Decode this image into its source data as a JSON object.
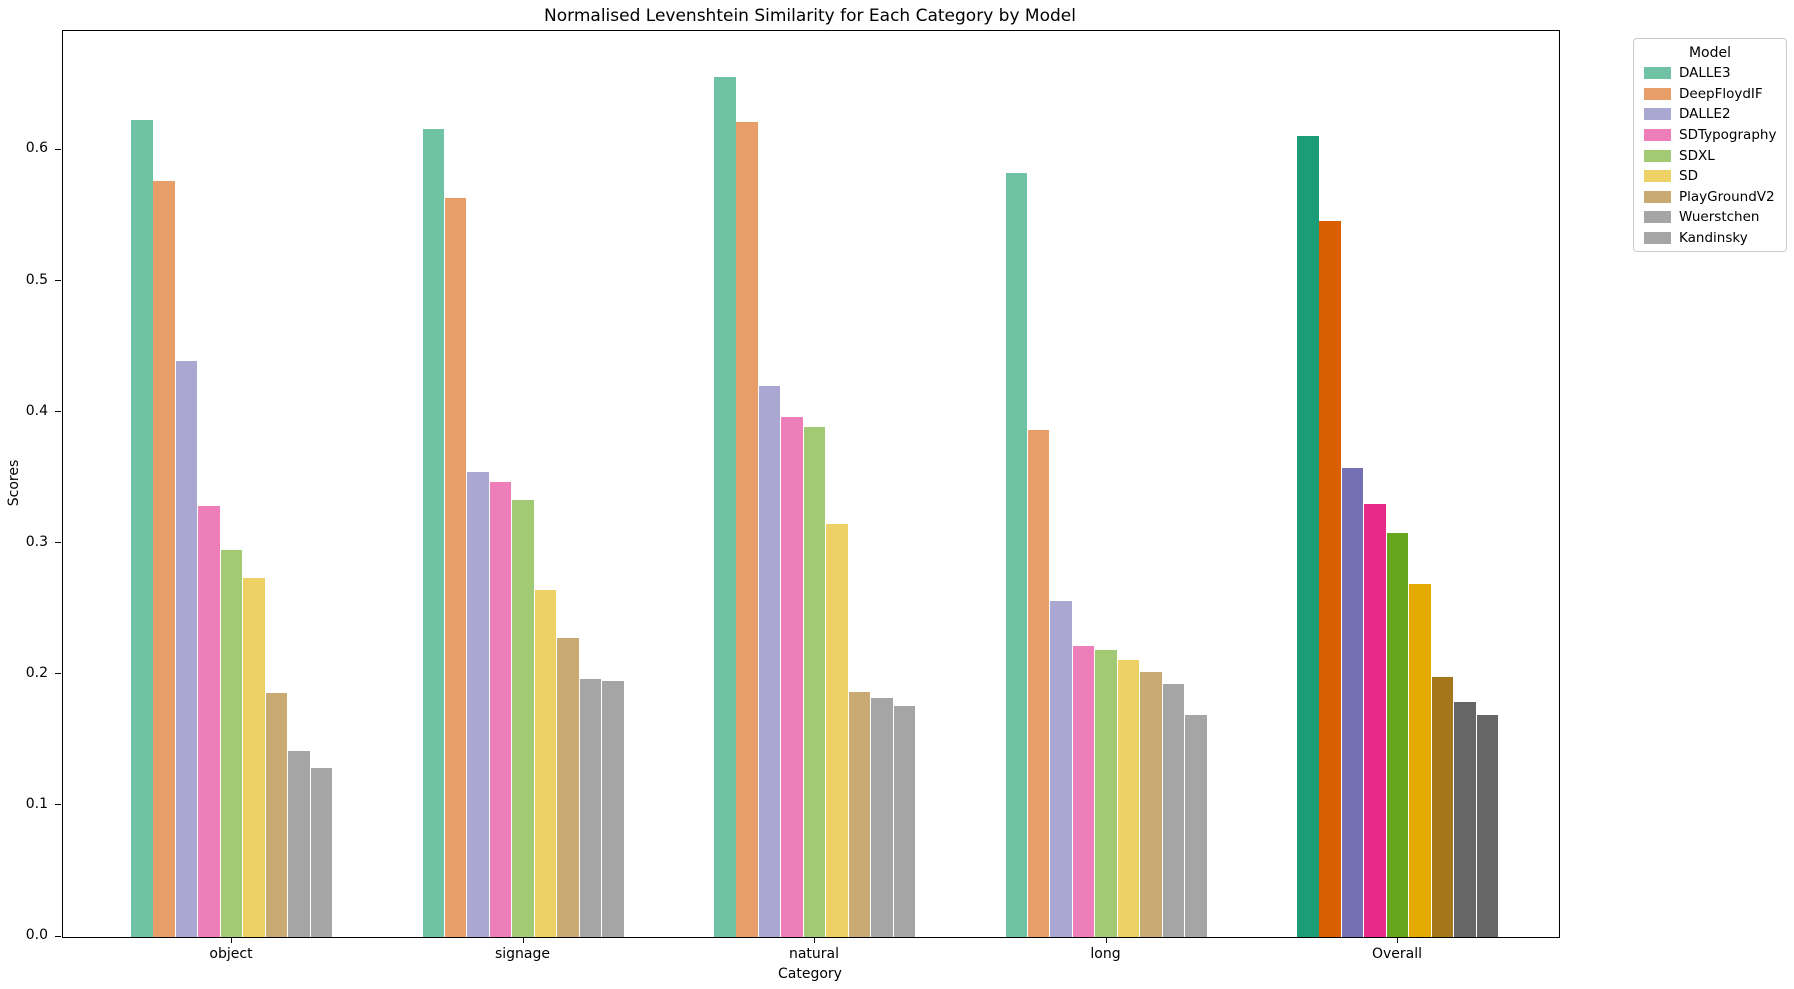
{
  "chart_data": {
    "type": "bar",
    "title": "Normalised Levenshtein Similarity for Each Category by Model",
    "xlabel": "Category",
    "ylabel": "Scores",
    "legend_title": "Model",
    "legend_position": "outside upper right",
    "ylim": [
      0,
      0.691
    ],
    "yticks": [
      "0.0",
      "0.1",
      "0.2",
      "0.3",
      "0.4",
      "0.5",
      "0.6"
    ],
    "grid": false,
    "categories": [
      "object",
      "signage",
      "natural",
      "long",
      "Overall"
    ],
    "palette_note": "category groups use light Set2-style colors; Overall group uses dark Dark2-style colors",
    "series": [
      {
        "name": "DALLE3",
        "color": "#6fc2a4",
        "overall_color": "#1b9e77",
        "values": [
          0.623,
          0.616,
          0.656,
          0.583,
          0.611
        ]
      },
      {
        "name": "DeepFloydIF",
        "color": "#e89e68",
        "overall_color": "#d95f02",
        "values": [
          0.577,
          0.564,
          0.622,
          0.387,
          0.546
        ]
      },
      {
        "name": "DALLE2",
        "color": "#aaa7d3",
        "overall_color": "#7570b3",
        "values": [
          0.439,
          0.355,
          0.42,
          0.256,
          0.358
        ]
      },
      {
        "name": "SDTypography",
        "color": "#ee7eba",
        "overall_color": "#e7298a",
        "values": [
          0.329,
          0.347,
          0.397,
          0.222,
          0.33
        ]
      },
      {
        "name": "SDXL",
        "color": "#a2c973",
        "overall_color": "#66a61e",
        "values": [
          0.295,
          0.333,
          0.389,
          0.219,
          0.308
        ]
      },
      {
        "name": "SD",
        "color": "#eed165",
        "overall_color": "#e6ab02",
        "values": [
          0.274,
          0.265,
          0.315,
          0.211,
          0.269
        ]
      },
      {
        "name": "PlayGroundV2",
        "color": "#c9aa72",
        "overall_color": "#a6761d",
        "values": [
          0.186,
          0.228,
          0.187,
          0.202,
          0.198
        ]
      },
      {
        "name": "Wuerstchen",
        "color": "#a5a5a5",
        "overall_color": "#666666",
        "values": [
          0.142,
          0.197,
          0.182,
          0.193,
          0.179
        ]
      },
      {
        "name": "Kandinsky",
        "color": "#a5a5a5",
        "overall_color": "#666666",
        "values": [
          0.129,
          0.195,
          0.176,
          0.169,
          0.169
        ]
      }
    ]
  }
}
